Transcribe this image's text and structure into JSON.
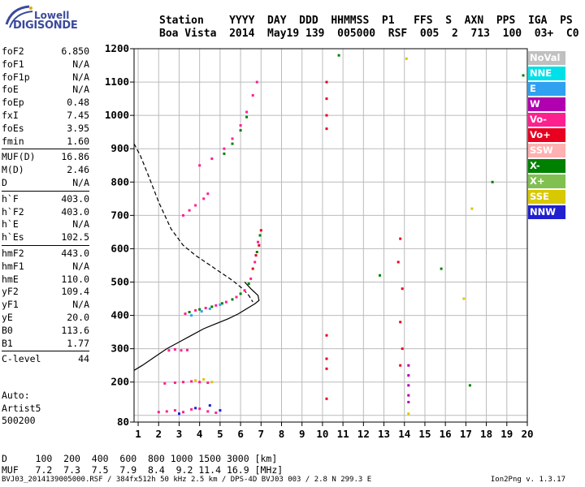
{
  "logo": {
    "line1": "Lowell",
    "line2": "DIGISONDE"
  },
  "header": {
    "labels": [
      "Station",
      "YYYY",
      "DAY",
      "DDD",
      "HHMMSS",
      "P1",
      "FFS",
      "S",
      "AXN",
      "PPS",
      "IGA",
      "PS"
    ],
    "values": [
      "Boa Vista",
      "2014",
      "May19",
      "139",
      "005000",
      "RSF",
      "005",
      "2",
      "713",
      "100",
      "03+",
      "C0"
    ]
  },
  "params": [
    [
      {
        "k": "foF2",
        "v": "6.850"
      },
      {
        "k": "foF1",
        "v": "N/A"
      },
      {
        "k": "foF1p",
        "v": "N/A"
      },
      {
        "k": "foE",
        "v": "N/A"
      },
      {
        "k": "foEp",
        "v": "0.48"
      },
      {
        "k": "fxI",
        "v": "7.45"
      },
      {
        "k": "foEs",
        "v": "3.95"
      },
      {
        "k": "fmin",
        "v": "1.60"
      }
    ],
    [
      {
        "k": "MUF(D)",
        "v": "16.86"
      },
      {
        "k": "M(D)",
        "v": "2.46"
      },
      {
        "k": "D",
        "v": "N/A"
      }
    ],
    [
      {
        "k": "h`F",
        "v": "403.0"
      },
      {
        "k": "h`F2",
        "v": "403.0"
      },
      {
        "k": "h`E",
        "v": "N/A"
      },
      {
        "k": "h`Es",
        "v": "102.5"
      }
    ],
    [
      {
        "k": "hmF2",
        "v": "443.0"
      },
      {
        "k": "hmF1",
        "v": "N/A"
      },
      {
        "k": "hmE",
        "v": "110.0"
      },
      {
        "k": "yF2",
        "v": "109.4"
      },
      {
        "k": "yF1",
        "v": "N/A"
      },
      {
        "k": "yE",
        "v": "20.0"
      },
      {
        "k": "B0",
        "v": "113.6"
      },
      {
        "k": "B1",
        "v": "1.77"
      }
    ],
    [
      {
        "k": "C-level",
        "v": "44"
      }
    ]
  ],
  "auto": {
    "line1": "Auto:",
    "line2": "Artist5",
    "line3": "500200"
  },
  "footer": {
    "line1": "D     100  200  400  600  800 1000 1500 3000 [km]",
    "line2": "MUF   7.2  7.3  7.5  7.9  8.4  9.2 11.4 16.9 [MHz]"
  },
  "bottom_text": "BVJ03_2014139005000.RSF / 384fx512h 50 kHz 2.5 km / DPS-4D BVJ03 003 / 2.8 N 299.3 E",
  "version": "Ion2Png v. 1.3.17",
  "legend": [
    {
      "label": "NoVal",
      "color": "#c0c0c0"
    },
    {
      "label": "NNE",
      "color": "#00e0e8"
    },
    {
      "label": "E",
      "color": "#30a0f0"
    },
    {
      "label": "W",
      "color": "#b000b0"
    },
    {
      "label": "Vo-",
      "color": "#ff2090"
    },
    {
      "label": "Vo+",
      "color": "#e80020"
    },
    {
      "label": "SSW",
      "color": "#ffb0b0"
    },
    {
      "label": "X-",
      "color": "#008000"
    },
    {
      "label": "X+",
      "color": "#80c050"
    },
    {
      "label": "SSE",
      "color": "#d8c800"
    },
    {
      "label": "NNW",
      "color": "#2020d0"
    }
  ],
  "chart_data": {
    "type": "scatter",
    "xlim": [
      0.8,
      20
    ],
    "ylim": [
      80,
      1200
    ],
    "x_ticks": [
      1,
      2,
      3,
      4,
      5,
      6,
      7,
      8,
      9,
      10,
      11,
      12,
      13,
      14,
      15,
      16,
      17,
      18,
      19,
      20
    ],
    "y_ticks": [
      80,
      100,
      200,
      300,
      400,
      500,
      600,
      700,
      800,
      900,
      1000,
      1100,
      1200
    ],
    "y_tick_labels": [
      80,
      200,
      300,
      400,
      500,
      600,
      700,
      800,
      900,
      1000,
      1100,
      1200
    ],
    "grid": true,
    "series": [
      {
        "color": "#ff2090",
        "points": [
          [
            3.3,
            405
          ],
          [
            3.8,
            415
          ],
          [
            4.3,
            422
          ],
          [
            4.8,
            430
          ],
          [
            5.3,
            440
          ],
          [
            5.8,
            455
          ],
          [
            6.2,
            475
          ],
          [
            6.5,
            510
          ],
          [
            6.7,
            560
          ],
          [
            6.85,
            620
          ]
        ]
      },
      {
        "color": "#008000",
        "points": [
          [
            3.5,
            410
          ],
          [
            4.0,
            418
          ],
          [
            4.6,
            426
          ],
          [
            5.1,
            436
          ],
          [
            5.6,
            448
          ],
          [
            6.0,
            465
          ],
          [
            6.4,
            495
          ],
          [
            6.8,
            590
          ],
          [
            6.95,
            640
          ]
        ]
      },
      {
        "color": "#e80020",
        "points": [
          [
            6.6,
            540
          ],
          [
            6.75,
            580
          ],
          [
            6.9,
            610
          ],
          [
            7.0,
            655
          ]
        ]
      },
      {
        "color": "#30a0f0",
        "points": [
          [
            3.6,
            400
          ],
          [
            4.1,
            412
          ],
          [
            4.5,
            420
          ],
          [
            5.0,
            432
          ]
        ]
      },
      {
        "color": "#ff2090",
        "points": [
          [
            4.0,
            850
          ],
          [
            4.6,
            870
          ],
          [
            5.2,
            900
          ],
          [
            5.6,
            930
          ],
          [
            6.0,
            970
          ],
          [
            6.3,
            1010
          ],
          [
            6.6,
            1060
          ],
          [
            6.8,
            1100
          ]
        ]
      },
      {
        "color": "#008000",
        "points": [
          [
            5.2,
            885
          ],
          [
            5.6,
            915
          ],
          [
            6.0,
            955
          ],
          [
            6.3,
            995
          ]
        ]
      },
      {
        "color": "#ff2090",
        "points": [
          [
            3.2,
            700
          ],
          [
            3.5,
            715
          ],
          [
            3.8,
            730
          ],
          [
            4.2,
            750
          ],
          [
            4.4,
            765
          ]
        ]
      },
      {
        "color": "#ff2090",
        "points": [
          [
            2.3,
            196
          ],
          [
            2.8,
            198
          ],
          [
            3.2,
            200
          ],
          [
            3.6,
            202
          ],
          [
            4.0,
            200
          ],
          [
            4.4,
            198
          ]
        ]
      },
      {
        "color": "#d8c800",
        "points": [
          [
            3.8,
            205
          ],
          [
            4.2,
            208
          ],
          [
            4.6,
            200
          ]
        ]
      },
      {
        "color": "#ff2090",
        "points": [
          [
            2.0,
            110
          ],
          [
            2.4,
            112
          ],
          [
            2.8,
            115
          ],
          [
            3.2,
            110
          ],
          [
            3.6,
            118
          ],
          [
            4.0,
            120
          ],
          [
            4.4,
            112
          ],
          [
            4.8,
            108
          ]
        ]
      },
      {
        "color": "#2020d0",
        "points": [
          [
            3.0,
            105
          ],
          [
            3.8,
            122
          ],
          [
            4.5,
            130
          ],
          [
            5.0,
            115
          ]
        ]
      },
      {
        "color": "#ff2090",
        "points": [
          [
            2.5,
            295
          ],
          [
            2.8,
            298
          ],
          [
            3.1,
            295
          ],
          [
            3.4,
            296
          ]
        ]
      },
      {
        "color": "#e80020",
        "points": [
          [
            10.2,
            1100
          ],
          [
            10.2,
            1050
          ],
          [
            10.2,
            1000
          ],
          [
            10.2,
            960
          ],
          [
            10.2,
            340
          ],
          [
            10.2,
            270
          ],
          [
            10.2,
            240
          ],
          [
            10.2,
            150
          ]
        ]
      },
      {
        "color": "#b000b0",
        "points": [
          [
            14.2,
            250
          ],
          [
            14.2,
            220
          ],
          [
            14.2,
            190
          ],
          [
            14.2,
            160
          ],
          [
            14.2,
            140
          ]
        ]
      },
      {
        "color": "#e80020",
        "points": [
          [
            13.8,
            630
          ],
          [
            13.7,
            560
          ],
          [
            13.9,
            480
          ],
          [
            13.8,
            380
          ],
          [
            13.9,
            300
          ],
          [
            13.8,
            250
          ]
        ]
      },
      {
        "color": "#008000",
        "points": [
          [
            10.8,
            1180
          ],
          [
            12.8,
            520
          ],
          [
            15.8,
            540
          ],
          [
            17.2,
            190
          ],
          [
            18.3,
            800
          ],
          [
            19.8,
            1120
          ]
        ]
      },
      {
        "color": "#d8c800",
        "points": [
          [
            14.1,
            1170
          ],
          [
            14.2,
            105
          ],
          [
            17.3,
            720
          ],
          [
            16.9,
            450
          ]
        ]
      }
    ],
    "curves": [
      {
        "name": "ne_profile",
        "style": "solid",
        "points": [
          [
            0.8,
            235
          ],
          [
            1.2,
            250
          ],
          [
            1.8,
            275
          ],
          [
            2.4,
            300
          ],
          [
            3.0,
            320
          ],
          [
            3.6,
            340
          ],
          [
            4.2,
            360
          ],
          [
            4.8,
            375
          ],
          [
            5.4,
            390
          ],
          [
            5.9,
            405
          ],
          [
            6.3,
            420
          ],
          [
            6.7,
            435
          ],
          [
            6.9,
            445
          ],
          [
            6.85,
            460
          ],
          [
            6.5,
            480
          ],
          [
            6.2,
            500
          ]
        ]
      },
      {
        "name": "muf_curve",
        "style": "dashed",
        "points": [
          [
            0.8,
            915
          ],
          [
            1.1,
            880
          ],
          [
            1.5,
            820
          ],
          [
            2.0,
            740
          ],
          [
            2.6,
            660
          ],
          [
            3.2,
            610
          ],
          [
            3.8,
            580
          ],
          [
            4.4,
            555
          ],
          [
            5.0,
            530
          ],
          [
            5.6,
            505
          ],
          [
            6.1,
            480
          ],
          [
            6.4,
            460
          ],
          [
            6.6,
            440
          ]
        ]
      }
    ]
  }
}
